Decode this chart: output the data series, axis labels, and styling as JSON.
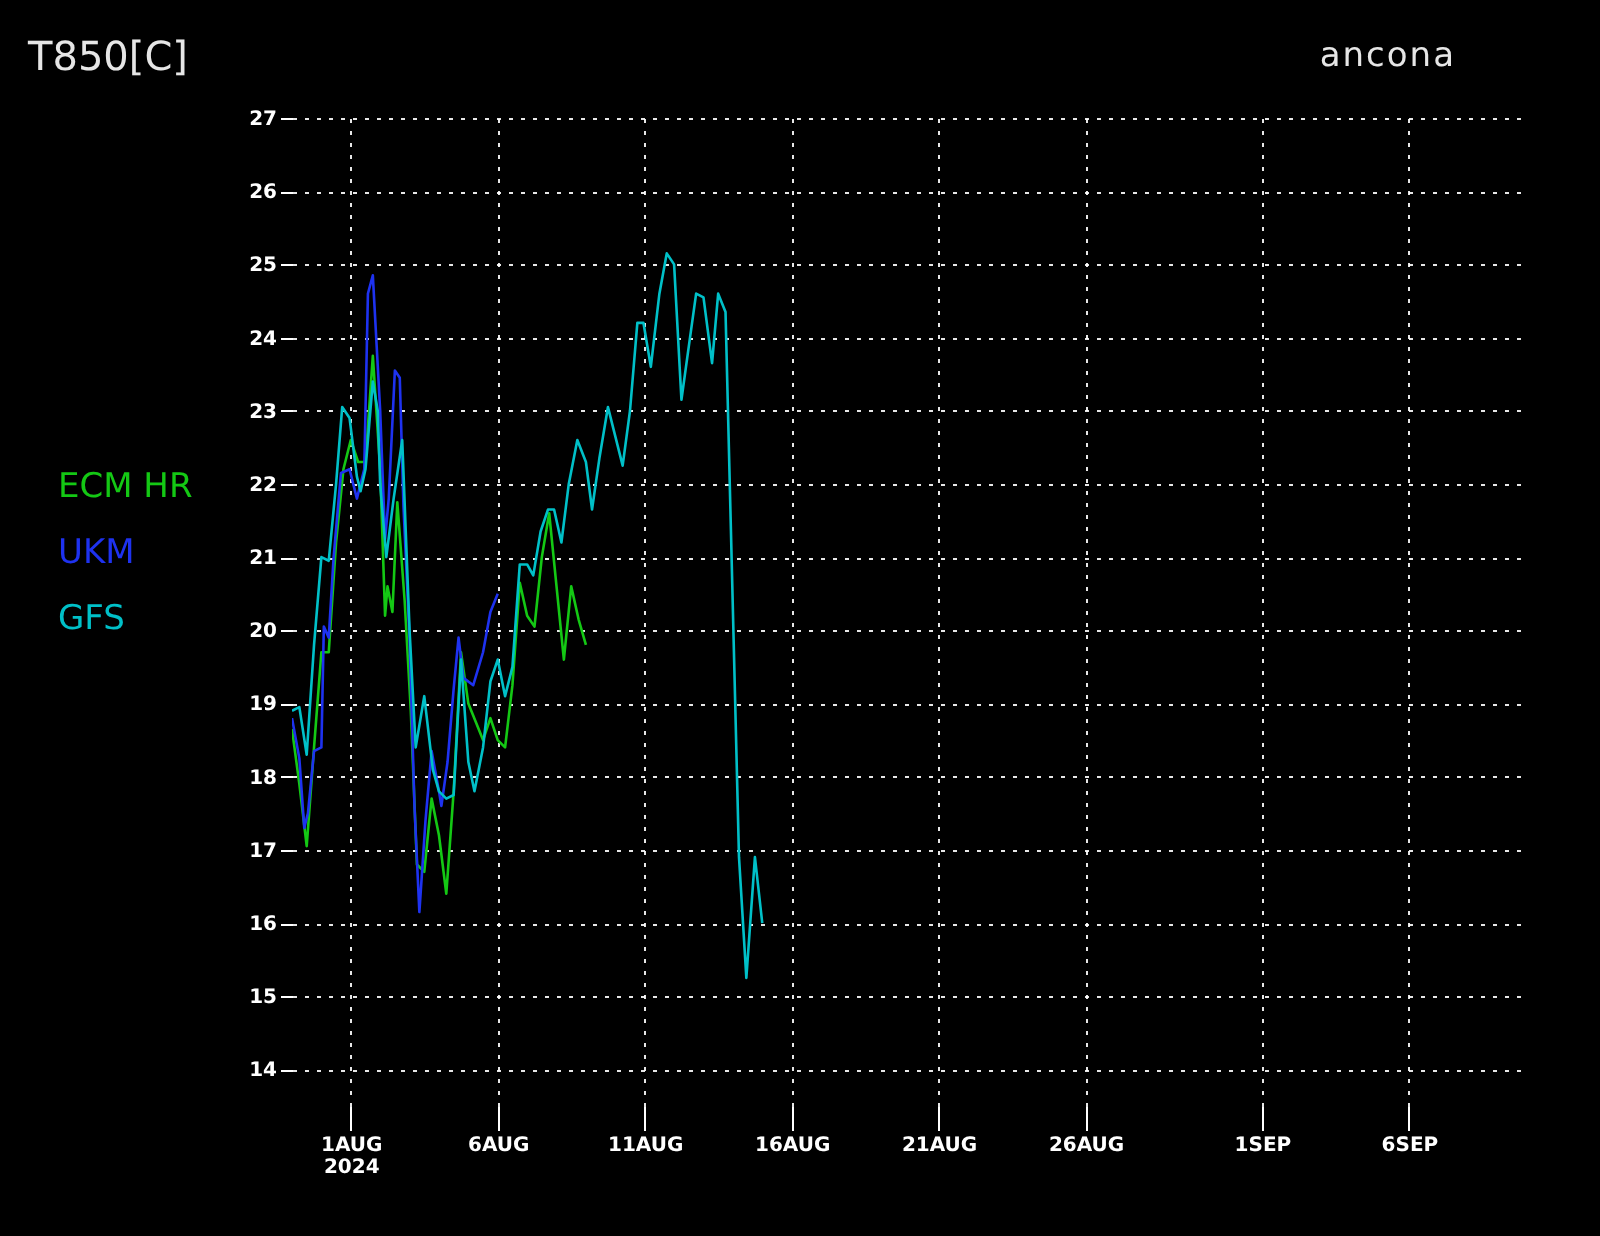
{
  "chart_data": {
    "type": "line",
    "title": "T850[C]",
    "subtitle": "ancona",
    "legend": "left",
    "grid": true,
    "line_style": "solid",
    "xlim": [
      "2024-07-30T00:00",
      "2024-09-09T22:00"
    ],
    "xticks": [
      {
        "value": "2024-08-01",
        "label": "1AUG\n2024"
      },
      {
        "value": "2024-08-06",
        "label": "6AUG"
      },
      {
        "value": "2024-08-11",
        "label": "11AUG"
      },
      {
        "value": "2024-08-16",
        "label": "16AUG"
      },
      {
        "value": "2024-08-21",
        "label": "21AUG"
      },
      {
        "value": "2024-08-26",
        "label": "26AUG"
      },
      {
        "value": "2024-09-01",
        "label": "1SEP"
      },
      {
        "value": "2024-09-06",
        "label": "6SEP"
      }
    ],
    "ylim": [
      13.5,
      27
    ],
    "yticks": [
      14,
      15,
      16,
      17,
      18,
      19,
      20,
      21,
      22,
      23,
      24,
      25,
      26,
      27
    ],
    "series": [
      {
        "name": "ECM HR",
        "color": "#14c814",
        "x": [
          "2024-07-30T00:00",
          "2024-07-30T06:00",
          "2024-07-30T12:00",
          "2024-07-30T18:00",
          "2024-07-31T00:00",
          "2024-07-31T06:00",
          "2024-07-31T12:00",
          "2024-07-31T18:00",
          "2024-08-01T00:00",
          "2024-08-01T06:00",
          "2024-08-01T12:00",
          "2024-08-01T18:00",
          "2024-08-02T00:00",
          "2024-08-02T04:00",
          "2024-08-02T06:00",
          "2024-08-02T10:00",
          "2024-08-02T14:00",
          "2024-08-02T20:00",
          "2024-08-03T01:00",
          "2024-08-03T06:00",
          "2024-08-03T12:00",
          "2024-08-03T18:00",
          "2024-08-04T00:00",
          "2024-08-04T06:00",
          "2024-08-04T12:00",
          "2024-08-04T18:00",
          "2024-08-05T00:00",
          "2024-08-05T06:00",
          "2024-08-05T12:00",
          "2024-08-05T18:00",
          "2024-08-06T00:00",
          "2024-08-06T06:00",
          "2024-08-06T12:00",
          "2024-08-06T18:00",
          "2024-08-07T00:00",
          "2024-08-07T06:00",
          "2024-08-07T12:00",
          "2024-08-07T18:00",
          "2024-08-08T00:00",
          "2024-08-08T06:00",
          "2024-08-08T12:00",
          "2024-08-08T18:00",
          "2024-08-09T00:00"
        ],
        "values": [
          18.65,
          17.9,
          17.05,
          18.4,
          19.7,
          19.7,
          21.2,
          22.2,
          22.6,
          22.3,
          22.3,
          23.75,
          22.2,
          20.2,
          20.6,
          20.25,
          21.75,
          20.4,
          18.9,
          16.8,
          16.7,
          17.7,
          17.2,
          16.4,
          17.8,
          19.7,
          19.0,
          18.75,
          18.5,
          18.8,
          18.5,
          18.4,
          19.25,
          20.65,
          20.2,
          20.05,
          21.0,
          21.6,
          20.6,
          19.6,
          20.6,
          20.15,
          19.8
        ]
      },
      {
        "name": "UKM",
        "color": "#1e32f0",
        "x": [
          "2024-07-30T00:00",
          "2024-07-30T06:00",
          "2024-07-30T10:00",
          "2024-07-30T13:00",
          "2024-07-30T18:00",
          "2024-07-31T00:00",
          "2024-07-31T02:00",
          "2024-07-31T06:00",
          "2024-07-31T10:00",
          "2024-07-31T16:00",
          "2024-07-31T23:00",
          "2024-08-01T05:00",
          "2024-08-01T11:00",
          "2024-08-01T14:00",
          "2024-08-01T18:00",
          "2024-08-02T00:00",
          "2024-08-02T04:00",
          "2024-08-02T07:00",
          "2024-08-02T12:00",
          "2024-08-02T16:00",
          "2024-08-02T19:00",
          "2024-08-03T00:00",
          "2024-08-03T04:00",
          "2024-08-03T08:00",
          "2024-08-03T13:00",
          "2024-08-03T18:00",
          "2024-08-04T00:00",
          "2024-08-04T02:00",
          "2024-08-04T07:00",
          "2024-08-04T12:00",
          "2024-08-04T16:00",
          "2024-08-04T20:00",
          "2024-08-05T04:00",
          "2024-08-05T12:00",
          "2024-08-05T18:00",
          "2024-08-06T00:00"
        ],
        "values": [
          18.8,
          18.25,
          17.3,
          17.5,
          18.35,
          18.4,
          20.05,
          19.9,
          21.0,
          22.15,
          22.2,
          21.8,
          22.2,
          24.6,
          24.85,
          23.0,
          21.25,
          21.8,
          23.55,
          23.45,
          21.7,
          19.9,
          17.6,
          16.15,
          17.4,
          18.35,
          17.8,
          17.6,
          18.2,
          19.2,
          19.9,
          19.35,
          19.25,
          19.7,
          20.25,
          20.5
        ]
      },
      {
        "name": "GFS",
        "color": "#00c0c8",
        "x": [
          "2024-07-30T00:00",
          "2024-07-30T06:00",
          "2024-07-30T12:00",
          "2024-07-30T18:00",
          "2024-07-31T00:00",
          "2024-07-31T06:00",
          "2024-07-31T12:00",
          "2024-07-31T17:00",
          "2024-07-31T23:00",
          "2024-08-01T05:00",
          "2024-08-01T08:00",
          "2024-08-01T12:00",
          "2024-08-01T18:00",
          "2024-08-01T22:00",
          "2024-08-02T00:00",
          "2024-08-02T05:00",
          "2024-08-02T11:00",
          "2024-08-02T18:00",
          "2024-08-03T00:00",
          "2024-08-03T05:00",
          "2024-08-03T12:00",
          "2024-08-03T19:00",
          "2024-08-04T00:00",
          "2024-08-04T06:00",
          "2024-08-04T12:00",
          "2024-08-04T18:00",
          "2024-08-05T00:00",
          "2024-08-05T05:00",
          "2024-08-05T12:00",
          "2024-08-05T18:00",
          "2024-08-06T00:00",
          "2024-08-06T06:00",
          "2024-08-06T12:00",
          "2024-08-06T18:00",
          "2024-08-07T00:00",
          "2024-08-07T05:00",
          "2024-08-07T11:00",
          "2024-08-07T17:00",
          "2024-08-07T22:00",
          "2024-08-08T04:00",
          "2024-08-08T10:00",
          "2024-08-08T17:00",
          "2024-08-09T00:00",
          "2024-08-09T05:00",
          "2024-08-09T11:00",
          "2024-08-09T18:00",
          "2024-08-10T00:00",
          "2024-08-10T06:00",
          "2024-08-10T12:00",
          "2024-08-10T18:00",
          "2024-08-10T23:00",
          "2024-08-11T05:00",
          "2024-08-11T12:00",
          "2024-08-11T18:00",
          "2024-08-12T00:00",
          "2024-08-12T06:00",
          "2024-08-12T13:00",
          "2024-08-12T18:00",
          "2024-08-13T00:00",
          "2024-08-13T07:00",
          "2024-08-13T12:00",
          "2024-08-13T18:00",
          "2024-08-14T05:00",
          "2024-08-14T11:00",
          "2024-08-14T18:00",
          "2024-08-15T00:00"
        ],
        "values": [
          18.9,
          18.95,
          18.3,
          19.8,
          21.0,
          20.95,
          22.0,
          23.05,
          22.9,
          22.1,
          21.9,
          22.2,
          23.4,
          23.0,
          22.0,
          21.0,
          21.8,
          22.6,
          20.0,
          18.4,
          19.1,
          18.1,
          17.8,
          17.7,
          17.75,
          19.6,
          18.2,
          17.8,
          18.4,
          19.3,
          19.6,
          19.1,
          19.5,
          20.9,
          20.9,
          20.75,
          21.35,
          21.65,
          21.65,
          21.2,
          22.0,
          22.6,
          22.3,
          21.65,
          22.35,
          23.05,
          22.65,
          22.25,
          23.0,
          24.2,
          24.2,
          23.6,
          24.6,
          25.15,
          25.0,
          23.15,
          24.0,
          24.6,
          24.55,
          23.65,
          24.6,
          24.35,
          16.9,
          15.25,
          16.9,
          16.0
        ]
      }
    ]
  }
}
